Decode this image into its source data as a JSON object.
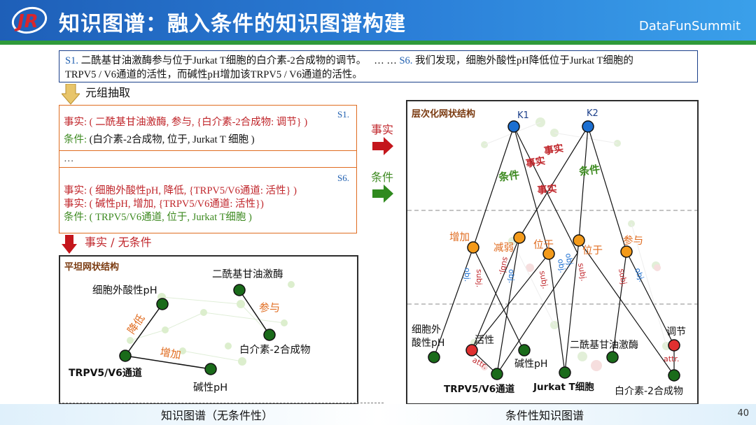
{
  "header": {
    "title": "知识图谱：融入条件的知识图谱构建",
    "brand": "DataFunSummit",
    "logo": "JR"
  },
  "sentences": {
    "s1_id": "S1.",
    "s1_text": "二酰基甘油激酶参与位于Jurkat T细胞的白介素-2合成物的调节。",
    "ellipsis": "… …",
    "s6_id": "S6.",
    "s6_text": "我们发现，细胞外酸性pH降低位于Jurkat T细胞的",
    "s6_text2": "TRPV5 / V6通道的活性，而碱性pH增加该TRPV5 / V6通道的活性。"
  },
  "extraction": {
    "step_label": "元组抽取",
    "s1_id": "S1.",
    "s6_id": "S6.",
    "ellipsis": "…",
    "fact1_label": "事实:",
    "fact1_text": "( 二酰基甘油激酶,  参与, {白介素-2合成物: 调节} )",
    "cond1_label": "条件:",
    "cond1_text": "(白介素-2合成物, 位于, Jurkat T 细胞 )",
    "fact2_label": "事实:",
    "fact2_text": "( 细胞外酸性pH, 降低, {TRPV5/V6通道: 活性} )",
    "fact3_label": "事实:",
    "fact3_text": "( 碱性pH, 增加, {TRPV5/V6通道: 活性})",
    "cond2_label": "条件:",
    "cond2_text": "( TRPV5/V6通道, 位于, Jurkat T细胞 )",
    "down_label": "事实 / 无条件"
  },
  "arrows": {
    "fact_label": "事实",
    "cond_label": "条件"
  },
  "flat": {
    "title": "平坦网状结构",
    "n_ph": "细胞外酸性pH",
    "n_dgk": "二酰基甘油激酶",
    "n_il2": "白介素-2合成物",
    "n_trpv": "TRPV5/V6通道",
    "n_base": "碱性pH",
    "e_reduce": "降低",
    "e_participate": "参与",
    "e_increase": "增加"
  },
  "hier": {
    "title": "层次化网状结构",
    "k1": "K1",
    "k2": "K2",
    "fact_a": "事实",
    "fact_b": "事实",
    "fact_c": "事实",
    "cond_a": "条件",
    "cond_b": "条件",
    "p_increase": "增加",
    "p_weaken": "减弱",
    "p_located1": "位于",
    "p_located2": "位于",
    "p_participate": "参与",
    "obj": "obj.",
    "subj": "subj.",
    "attr": "attr.",
    "n_ph1": "细胞外",
    "n_ph2": "酸性pH",
    "n_activity": "活性",
    "n_base": "碱性pH",
    "n_dgk": "二酰基甘油激酶",
    "n_regulate": "调节",
    "n_trpv": "TRPV5/V6通道",
    "n_jurkat": "Jurkat T细胞",
    "n_il2": "白介素-2合成物"
  },
  "footer": {
    "left": "知识图谱（无条件性）",
    "right": "条件性知识图谱",
    "page": "40"
  },
  "colors": {
    "header": "#1e5fb8",
    "fact": "#c0262b",
    "condition": "#3d8a20",
    "node_green": "#1f7a1f",
    "node_blue": "#1c6fd1",
    "node_orange": "#f39a1a",
    "node_red": "#e03030"
  }
}
